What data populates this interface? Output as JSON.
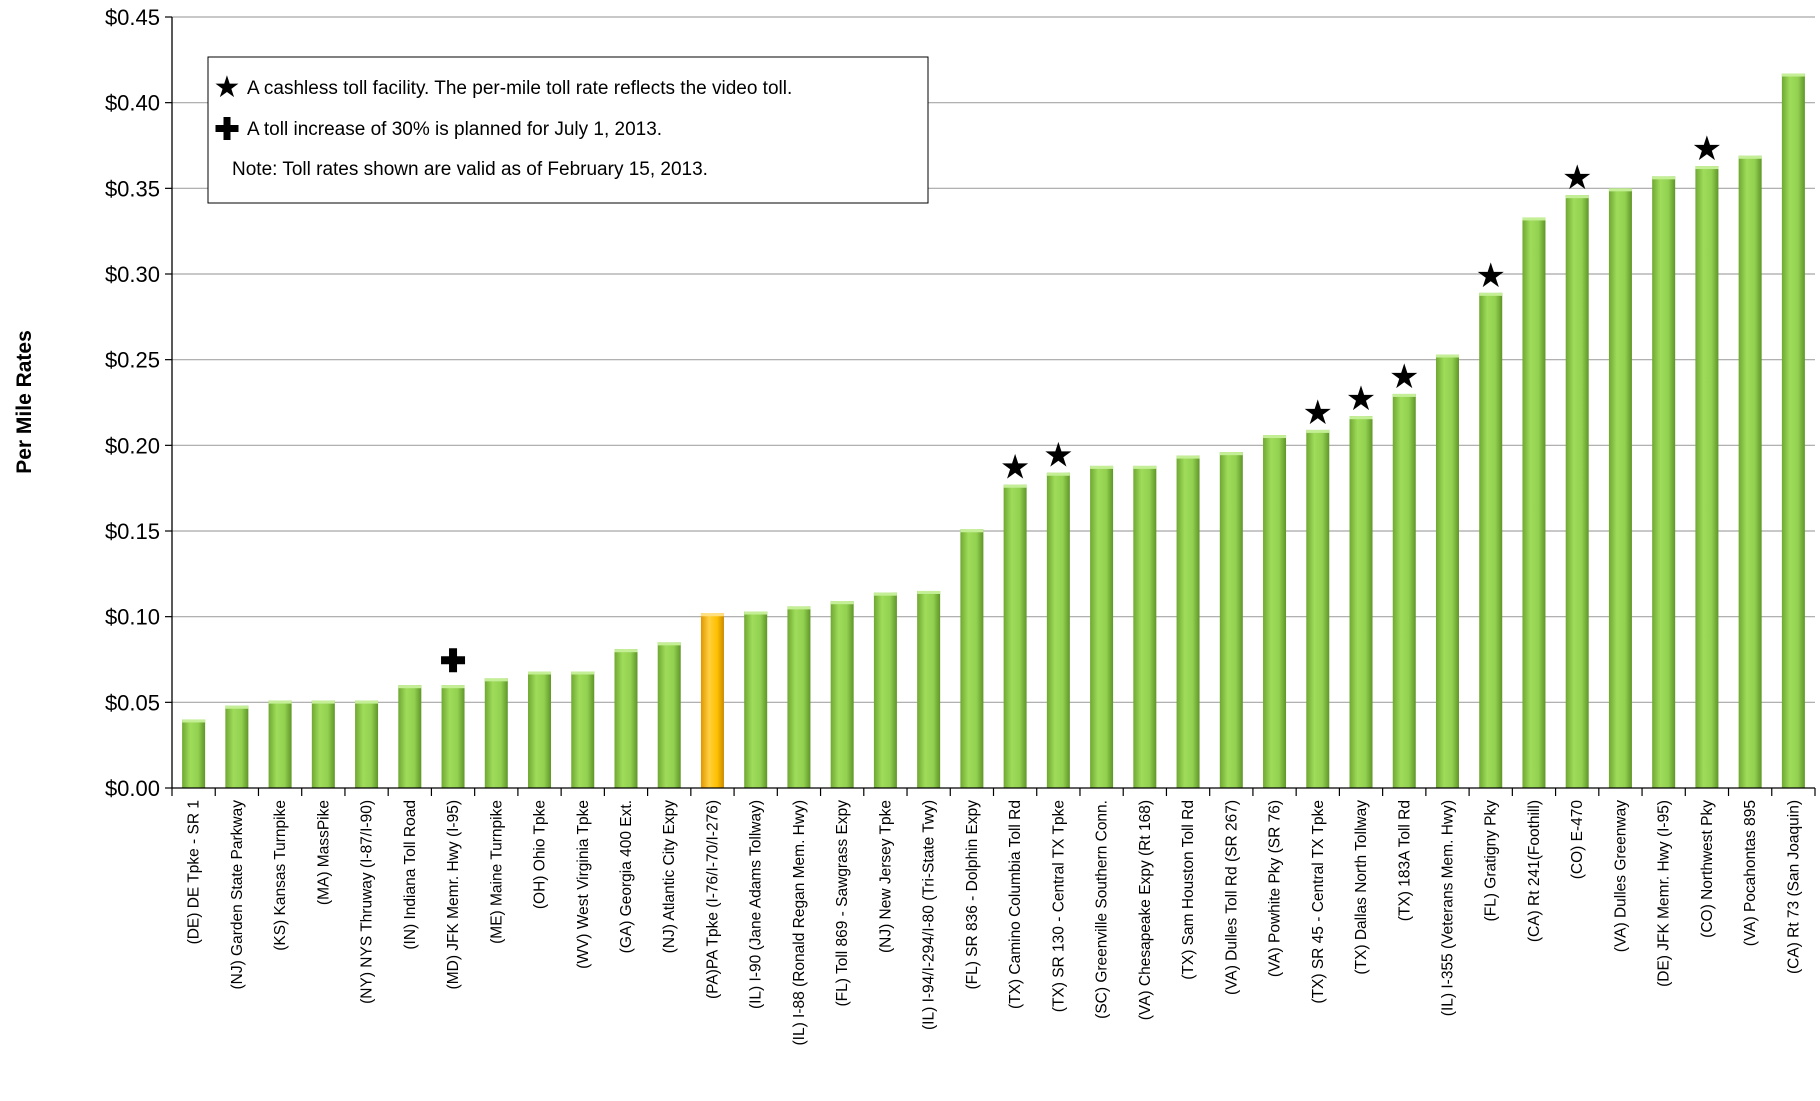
{
  "chart_data": {
    "type": "bar",
    "title": "",
    "xlabel": "",
    "ylabel": "Per Mile Rates",
    "ylim": [
      0,
      0.45
    ],
    "ytick_values": [
      0,
      0.05,
      0.1,
      0.15,
      0.2,
      0.25,
      0.3,
      0.35,
      0.4,
      0.45
    ],
    "ytick_labels": [
      "$0.00",
      "$0.05",
      "$0.10",
      "$0.15",
      "$0.20",
      "$0.25",
      "$0.30",
      "$0.35",
      "$0.40",
      "$0.45"
    ],
    "grid": true,
    "colors": {
      "bar": "#92d050",
      "highlight": "#ffc000",
      "gridline": "#a6a6a6",
      "marker": "#000000"
    },
    "categories": [
      "(DE) DE Tpke - SR 1",
      "(NJ) Garden State Parkway",
      "(KS) Kansas Turnpike",
      "(MA) MassPike",
      "(NY) NYS Thruway (I-87/I-90)",
      "(IN) Indiana Toll Road",
      "(MD) JFK Memr. Hwy (I-95)",
      "(ME) Maine Turnpike",
      "(OH) Ohio Tpke",
      "(WV) West Virginia Tpke",
      "(GA) Georgia 400 Ext.",
      "(NJ) Atlantic City Expy",
      "(PA)PA Tpke (I-76/I-70/I-276)",
      "(IL) I-90 (Jane Adams Tollway)",
      "(IL) I-88 (Ronald Regan Mem. Hwy)",
      "(FL) Toll 869 - Sawgrass Expy",
      "(NJ) New Jersey Tpke",
      "(IL) I-94/I-294/I-80 (Tri-State Twy)",
      "(FL) SR 836 - Dolphin Expy",
      "(TX) Camino Columbia Toll Rd",
      "(TX) SR 130 - Central TX Tpke",
      "(SC) Greenville Southern Conn.",
      "(VA) Chesapeake Expy (Rt 168)",
      "(TX) Sam Houston Toll Rd",
      "(VA) Dulles Toll Rd (SR 267)",
      "(VA) Powhite Pky (SR 76)",
      "(TX) SR 45 - Central TX Tpke",
      "(TX) Dallas North Tollway",
      "(TX) 183A Toll Rd",
      "(IL) I-355 (Veterans Mem. Hwy)",
      "(FL) Gratigny Pky",
      "(CA) Rt 241(Foothill)",
      "(CO) E-470",
      "(VA) Dulles Greenway",
      "(DE) JFK Memr. Hwy (I-95)",
      "(CO) Northwest Pky",
      "(VA) Pocahontas 895",
      "(CA) Rt 73 (San Joaquin)"
    ],
    "values": [
      0.04,
      0.048,
      0.051,
      0.051,
      0.051,
      0.06,
      0.06,
      0.064,
      0.068,
      0.068,
      0.081,
      0.085,
      0.102,
      0.103,
      0.106,
      0.109,
      0.114,
      0.115,
      0.151,
      0.177,
      0.184,
      0.188,
      0.188,
      0.194,
      0.196,
      0.206,
      0.209,
      0.217,
      0.23,
      0.253,
      0.289,
      0.333,
      0.346,
      0.35,
      0.357,
      0.363,
      0.369,
      0.417
    ],
    "highlight_index": 12,
    "cashless_indices": [
      19,
      20,
      26,
      27,
      28,
      30,
      32,
      35
    ],
    "increase_indices": [
      6
    ],
    "legend": {
      "placement": "top-left",
      "items": [
        {
          "icon": "star-icon",
          "text": "A cashless toll facility. The per-mile toll rate reflects the video toll."
        },
        {
          "icon": "plus-icon",
          "text": "A toll increase of 30% is planned for July 1, 2013."
        }
      ],
      "note": "Note: Toll rates shown are valid as of February 15, 2013."
    }
  }
}
